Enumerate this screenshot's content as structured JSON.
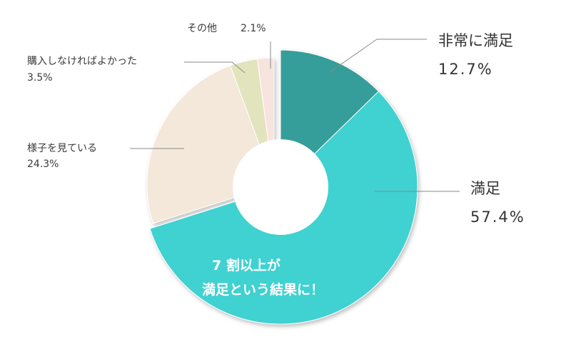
{
  "chart_data": {
    "type": "pie",
    "variant": "donut",
    "slices": [
      {
        "label": "非常に満足",
        "value": 12.7,
        "display": "12.7%",
        "color": "#369d9a"
      },
      {
        "label": "満足",
        "value": 57.4,
        "display": "57.4%",
        "color": "#41d1d1"
      },
      {
        "label": "様子を見ている",
        "value": 24.3,
        "display": "24.3%",
        "color": "#f3e8da"
      },
      {
        "label": "購入しなければよかった",
        "value": 3.5,
        "display": "3.5%",
        "color": "#e2e4bd"
      },
      {
        "label": "その他",
        "value": 2.1,
        "display": "2.1%",
        "color": "#f7e4de"
      }
    ],
    "callout_lines": [
      "7 割以上が",
      "満足という結果に！"
    ],
    "legend": "none"
  }
}
